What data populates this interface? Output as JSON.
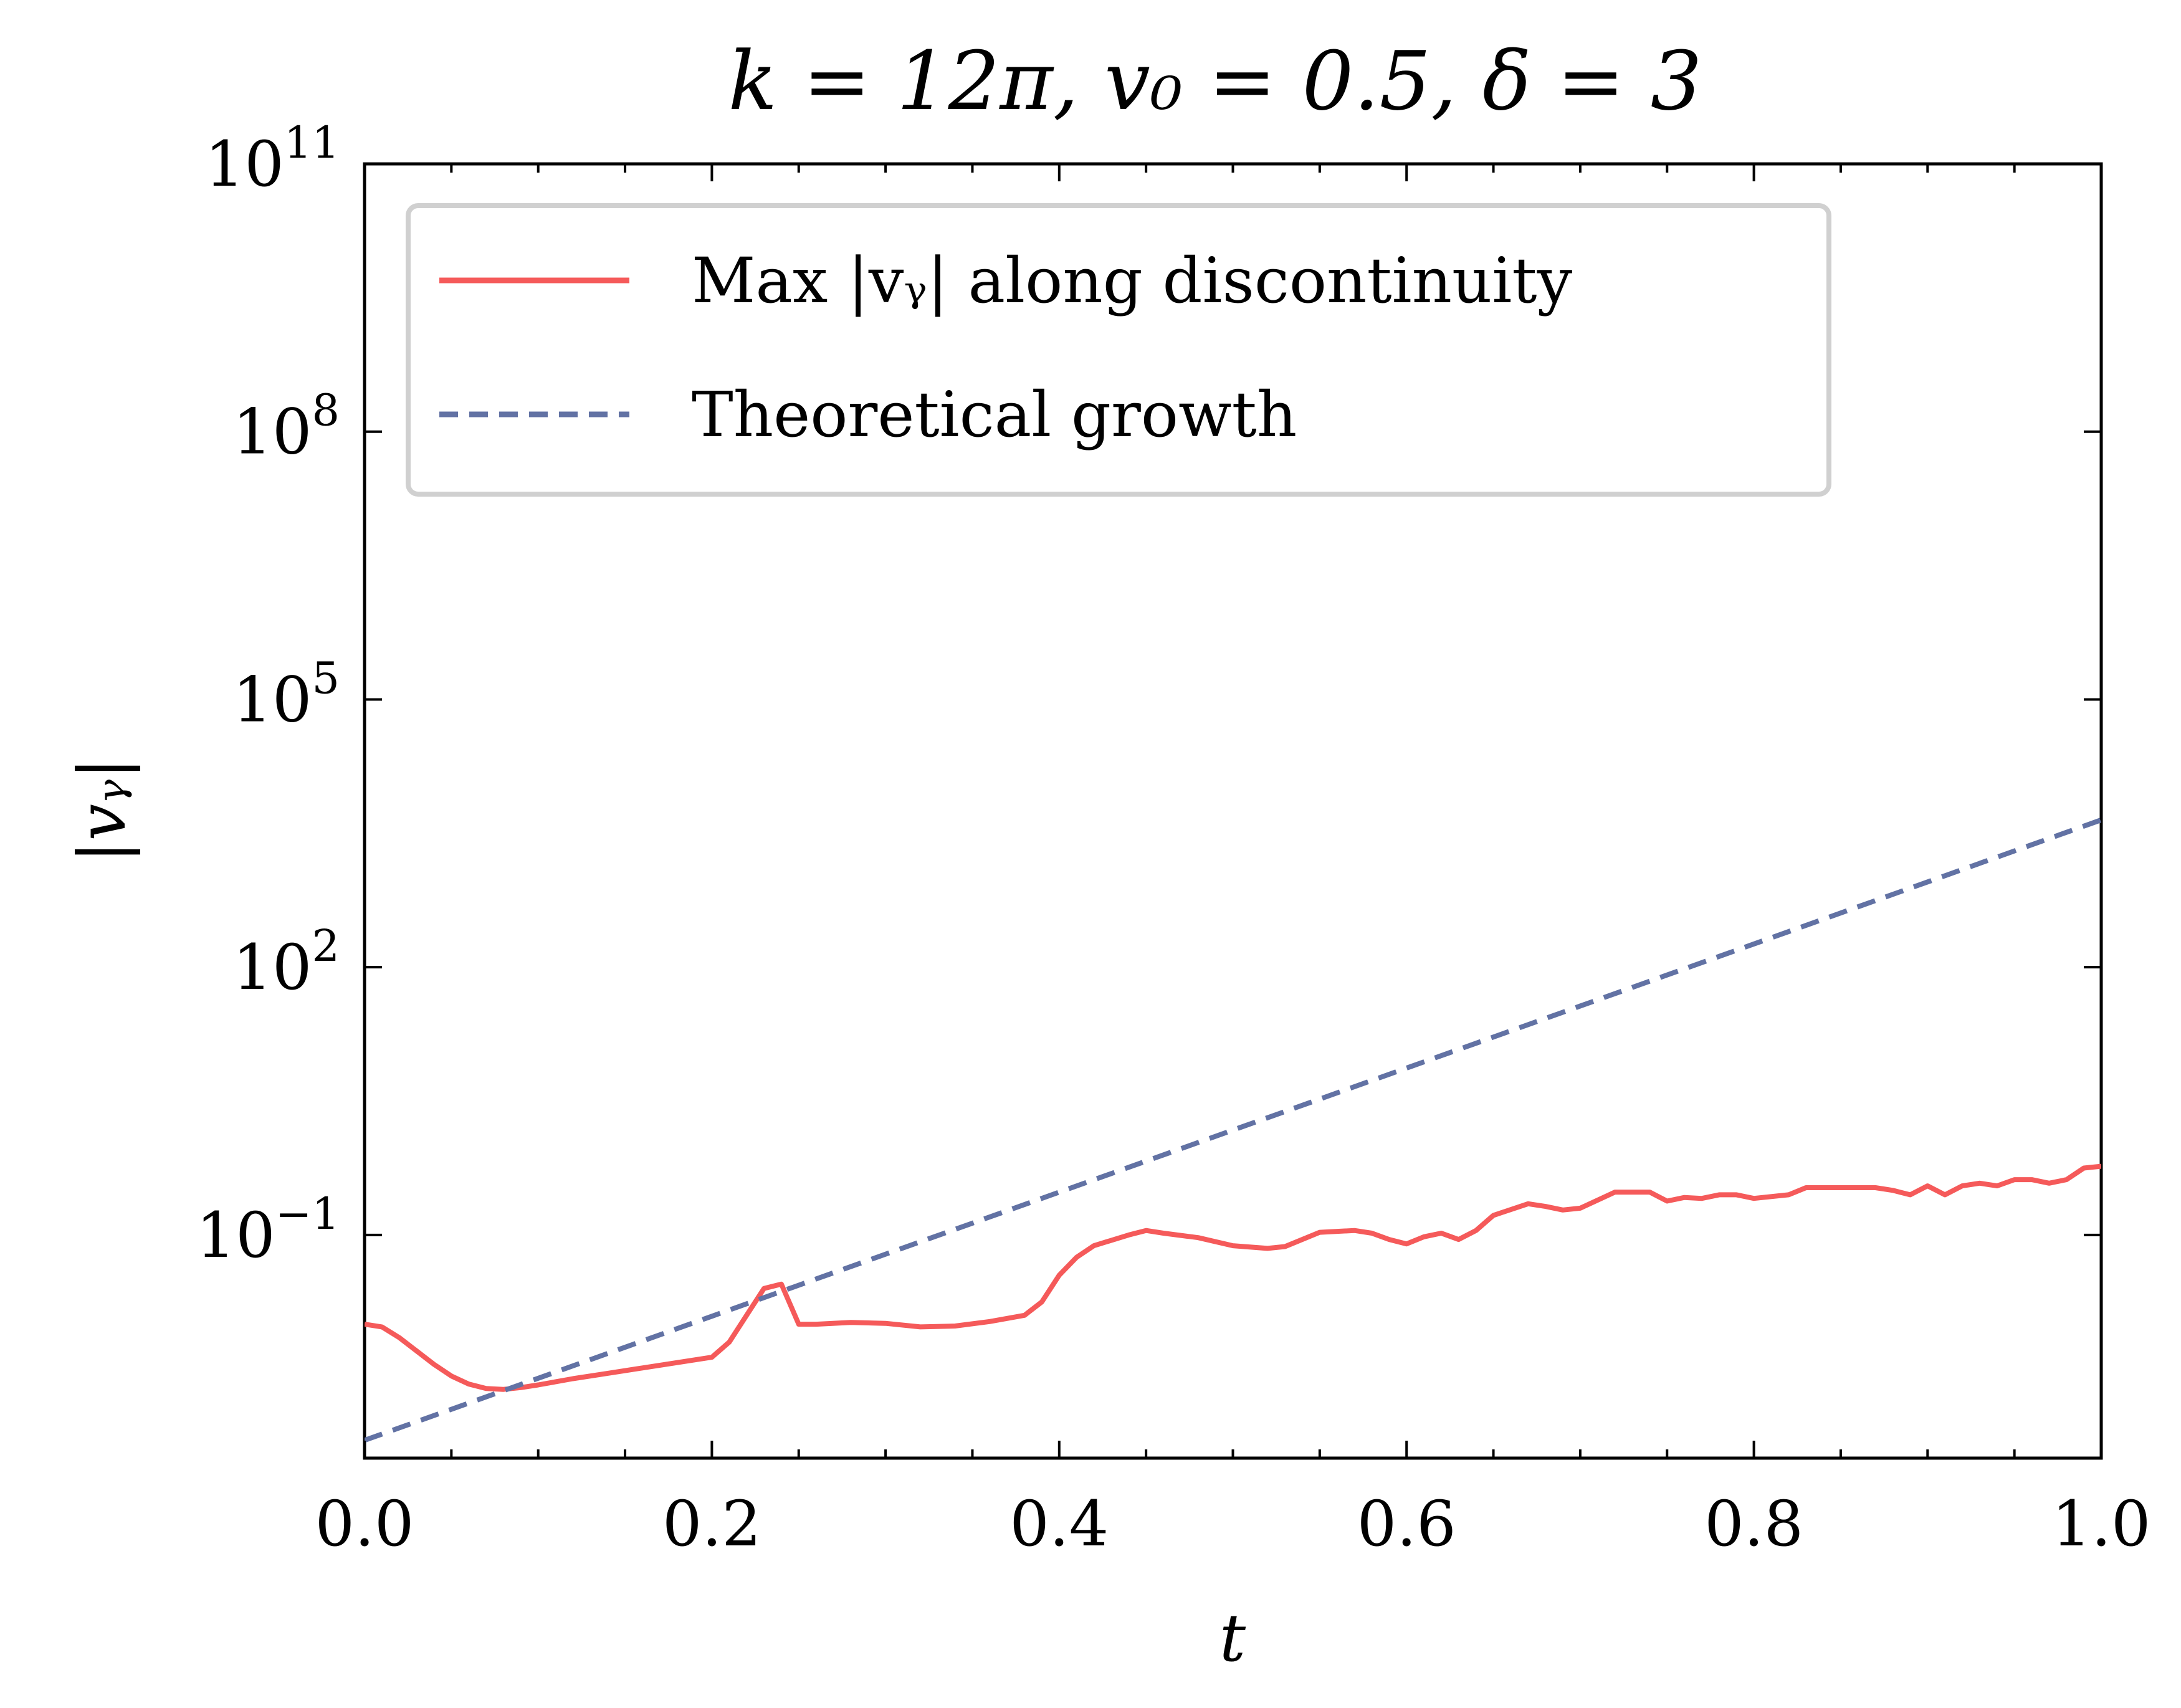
{
  "chart_data": {
    "type": "line",
    "title": "k = 12π, v₀ = 0.5, δ = 3",
    "xlabel": "t",
    "ylabel": "|vᵧ|",
    "xlim": [
      0.0,
      1.0
    ],
    "ylim_log10": [
      -3.5,
      11
    ],
    "y_scale": "log",
    "x_ticks": [
      "0.0",
      "0.2",
      "0.4",
      "0.6",
      "0.8",
      "1.0"
    ],
    "y_ticks": [
      {
        "base": "10",
        "exp": "−1",
        "log10": -1
      },
      {
        "base": "10",
        "exp": "2",
        "log10": 2
      },
      {
        "base": "10",
        "exp": "5",
        "log10": 5
      },
      {
        "base": "10",
        "exp": "8",
        "log10": 8
      },
      {
        "base": "10",
        "exp": "11",
        "log10": 11
      }
    ],
    "grid": false,
    "legend_position": "upper-left",
    "series": [
      {
        "name": "Max |vᵧ| along discontinuity",
        "style": "solid",
        "color": "#f55a5a",
        "x": [
          0.0,
          0.01,
          0.02,
          0.03,
          0.04,
          0.05,
          0.06,
          0.07,
          0.08,
          0.09,
          0.1,
          0.12,
          0.14,
          0.16,
          0.18,
          0.2,
          0.21,
          0.22,
          0.23,
          0.24,
          0.25,
          0.26,
          0.28,
          0.3,
          0.32,
          0.34,
          0.36,
          0.38,
          0.39,
          0.4,
          0.41,
          0.42,
          0.44,
          0.45,
          0.46,
          0.48,
          0.5,
          0.52,
          0.53,
          0.55,
          0.57,
          0.58,
          0.59,
          0.6,
          0.61,
          0.62,
          0.63,
          0.64,
          0.65,
          0.67,
          0.68,
          0.69,
          0.7,
          0.72,
          0.74,
          0.75,
          0.76,
          0.77,
          0.78,
          0.79,
          0.8,
          0.82,
          0.83,
          0.85,
          0.87,
          0.88,
          0.89,
          0.9,
          0.91,
          0.92,
          0.93,
          0.94,
          0.95,
          0.96,
          0.97,
          0.98,
          0.99,
          1.0
        ],
        "log10_y": [
          -2.0,
          -2.03,
          -2.15,
          -2.3,
          -2.45,
          -2.58,
          -2.67,
          -2.72,
          -2.73,
          -2.71,
          -2.68,
          -2.61,
          -2.55,
          -2.49,
          -2.43,
          -2.37,
          -2.2,
          -1.9,
          -1.6,
          -1.55,
          -2.0,
          -2.0,
          -1.98,
          -1.99,
          -2.03,
          -2.02,
          -1.97,
          -1.9,
          -1.75,
          -1.45,
          -1.25,
          -1.12,
          -1.0,
          -0.95,
          -0.98,
          -1.03,
          -1.12,
          -1.15,
          -1.13,
          -0.97,
          -0.95,
          -0.98,
          -1.05,
          -1.1,
          -1.02,
          -0.98,
          -1.05,
          -0.95,
          -0.78,
          -0.65,
          -0.68,
          -0.72,
          -0.7,
          -0.52,
          -0.52,
          -0.62,
          -0.58,
          -0.59,
          -0.55,
          -0.55,
          -0.59,
          -0.55,
          -0.47,
          -0.47,
          -0.47,
          -0.5,
          -0.55,
          -0.45,
          -0.55,
          -0.45,
          -0.42,
          -0.45,
          -0.38,
          -0.38,
          -0.42,
          -0.38,
          -0.25,
          -0.23
        ]
      },
      {
        "name": "Theoretical growth",
        "style": "dashed",
        "color": "#6272a4",
        "x": [
          0.0,
          1.0
        ],
        "log10_y": [
          -3.3,
          3.65
        ]
      }
    ]
  }
}
